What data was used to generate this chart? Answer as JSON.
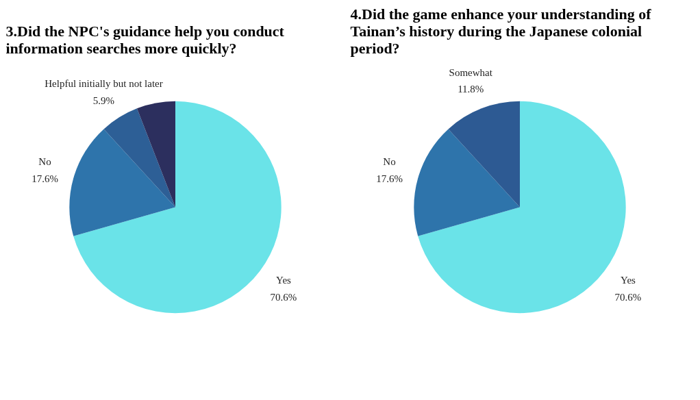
{
  "chart_data": [
    {
      "type": "pie",
      "title": "3.Did the NPC's guidance help you conduct information searches more quickly?",
      "categories": [
        "Yes",
        "No",
        "Helpful initially but not later",
        null
      ],
      "values": [
        70.6,
        17.6,
        5.9,
        5.9
      ],
      "colors": [
        "#6ae3e8",
        "#2e74ab",
        "#2d5f96",
        "#2c2f5e"
      ],
      "value_labels": [
        "70.6%",
        "17.6%",
        "5.9%",
        null
      ]
    },
    {
      "type": "pie",
      "title": "4.Did the game enhance your understanding of Tainan’s history during the Japanese colonial period?",
      "categories": [
        "Yes",
        "No",
        "Somewhat"
      ],
      "values": [
        70.6,
        17.6,
        11.8
      ],
      "colors": [
        "#6ae3e8",
        "#2e74ab",
        "#2d5a93"
      ],
      "value_labels": [
        "70.6%",
        "17.6%",
        "11.8%"
      ]
    }
  ]
}
